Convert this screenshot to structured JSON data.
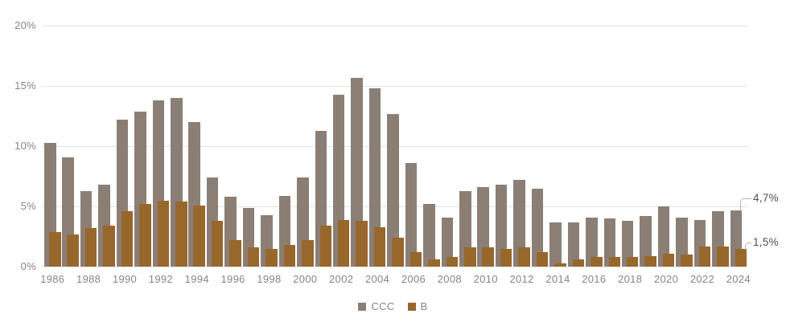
{
  "chart_data": {
    "type": "bar",
    "title": "",
    "xlabel": "",
    "ylabel": "",
    "x": [
      1986,
      1987,
      1988,
      1989,
      1990,
      1991,
      1992,
      1993,
      1994,
      1995,
      1996,
      1997,
      1998,
      1999,
      2000,
      2001,
      2002,
      2003,
      2004,
      2005,
      2006,
      2007,
      2008,
      2009,
      2010,
      2011,
      2012,
      2013,
      2014,
      2015,
      2016,
      2017,
      2018,
      2019,
      2020,
      2021,
      2022,
      2023,
      2024
    ],
    "series": [
      {
        "name": "CCC",
        "color": "#8B7F75",
        "values": [
          10.3,
          9.1,
          6.3,
          6.8,
          12.2,
          12.9,
          13.8,
          14.0,
          12.0,
          7.4,
          5.8,
          4.9,
          4.3,
          5.9,
          7.4,
          11.3,
          14.3,
          15.7,
          14.8,
          12.7,
          8.6,
          5.2,
          4.1,
          6.3,
          6.6,
          6.8,
          7.2,
          6.5,
          3.7,
          3.7,
          4.1,
          4.0,
          3.8,
          4.2,
          5.0,
          4.1,
          3.9,
          4.6,
          4.7
        ]
      },
      {
        "name": "B",
        "color": "#98672C",
        "values": [
          2.9,
          2.7,
          3.2,
          3.4,
          4.6,
          5.2,
          5.5,
          5.4,
          5.1,
          3.8,
          2.2,
          1.6,
          1.5,
          1.8,
          2.2,
          3.4,
          3.9,
          3.8,
          3.3,
          2.4,
          1.2,
          0.6,
          0.8,
          1.6,
          1.6,
          1.5,
          1.6,
          1.2,
          0.3,
          0.6,
          0.8,
          0.8,
          0.8,
          0.9,
          1.1,
          1.0,
          1.7,
          1.7,
          1.5
        ]
      }
    ],
    "ylim": [
      0,
      20
    ],
    "yticks": [
      0,
      5,
      10,
      15,
      20
    ],
    "ytick_labels": [
      "0%",
      "5%",
      "10%",
      "15%",
      "20%"
    ],
    "xtick_years": [
      1986,
      1988,
      1990,
      1992,
      1994,
      1996,
      1998,
      2000,
      2002,
      2004,
      2006,
      2008,
      2010,
      2012,
      2014,
      2016,
      2018,
      2020,
      2022,
      2024
    ],
    "grid": true,
    "legend_position": "bottom-center",
    "annotations": [
      {
        "label": "4,7%",
        "series": "CCC",
        "year": 2024,
        "value": 4.7
      },
      {
        "label": "1,5%",
        "series": "B",
        "year": 2024,
        "value": 1.5
      }
    ]
  },
  "style": {
    "grid_color": "#E4E2E1",
    "axis_text_color": "#8D8287",
    "annotation_text_color": "#544E49",
    "leader_color": "#B6B0AB",
    "background": "#FFFFFF"
  }
}
